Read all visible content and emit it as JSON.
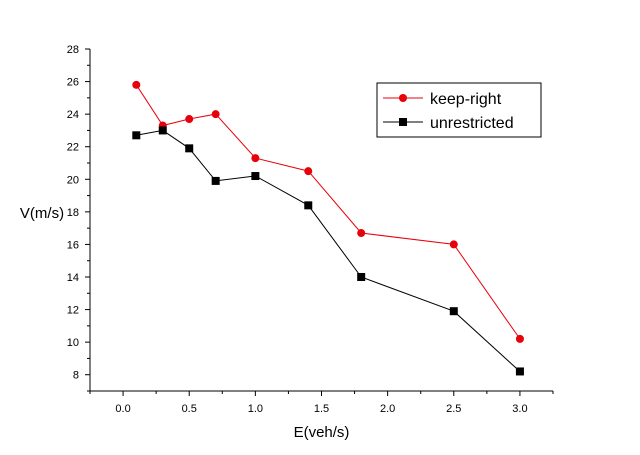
{
  "chart_data": {
    "type": "line",
    "title": "",
    "xlabel": "E(veh/s)",
    "ylabel": "V(m/s)",
    "xlim": [
      -0.25,
      3.25
    ],
    "ylim": [
      7,
      28
    ],
    "xticks": [
      0.0,
      0.5,
      1.0,
      1.5,
      2.0,
      2.5,
      3.0
    ],
    "xtick_labels": [
      "0.0",
      "0.5",
      "1.0",
      "1.5",
      "2.0",
      "2.5",
      "3.0"
    ],
    "yticks": [
      8,
      10,
      12,
      14,
      16,
      18,
      20,
      22,
      24,
      26,
      28
    ],
    "ytick_labels": [
      "8",
      "10",
      "12",
      "14",
      "16",
      "18",
      "20",
      "22",
      "24",
      "26",
      "28"
    ],
    "grid": false,
    "legend": "top-right",
    "series": [
      {
        "name": "keep-right",
        "color": "#e8000b",
        "marker": "circle",
        "x": [
          0.1,
          0.3,
          0.5,
          0.7,
          1.0,
          1.4,
          1.8,
          2.5,
          3.0
        ],
        "y": [
          25.8,
          23.3,
          23.7,
          24.0,
          21.3,
          20.5,
          16.7,
          16.0,
          10.2
        ]
      },
      {
        "name": "unrestricted",
        "color": "#000000",
        "marker": "square",
        "x": [
          0.1,
          0.3,
          0.5,
          0.7,
          1.0,
          1.4,
          1.8,
          2.5,
          3.0
        ],
        "y": [
          22.7,
          23.0,
          21.9,
          19.9,
          20.2,
          18.4,
          14.0,
          11.9,
          8.2
        ]
      }
    ]
  }
}
